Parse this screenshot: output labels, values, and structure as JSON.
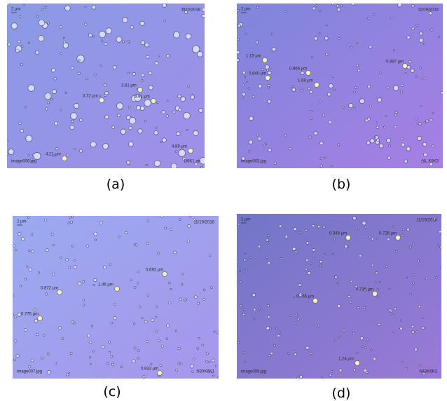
{
  "panels": [
    {
      "caption": "(a)",
      "scale": "2 μm",
      "date": "8/20/2018",
      "file": "image006.jpg",
      "sample": "D6K1 air",
      "measurements": [
        "3.81 μm",
        "3.72 μm",
        "3.91 μm",
        "4.21 μm",
        "4.89 μm"
      ]
    },
    {
      "caption": "(b)",
      "scale": "2 μm",
      "date": "11/09/2018",
      "file": "image003.jpg",
      "sample": "NL.K6K3",
      "measurements": [
        "1.13 μm",
        "0.840 μm",
        "0.966 μm",
        "1.69 μm",
        "0.897 μm"
      ]
    },
    {
      "caption": "(c)",
      "scale": "2 μm",
      "date": "11/19/2018",
      "file": "image007.jpg",
      "sample": "N30K6K1",
      "measurements": [
        "0.692 μm",
        "1.46 μm",
        "0.872 μm",
        "0.775 μm",
        "0.932 μm"
      ]
    },
    {
      "caption": "(d)",
      "scale": "2 μm",
      "date": "11/19/2018",
      "file": "image009.jpg",
      "sample": "N43K6K2",
      "measurements": [
        "0.345 μm",
        "0.726 μm",
        "0.716 μm",
        "0.755 μm",
        "1.24 μm"
      ]
    }
  ]
}
